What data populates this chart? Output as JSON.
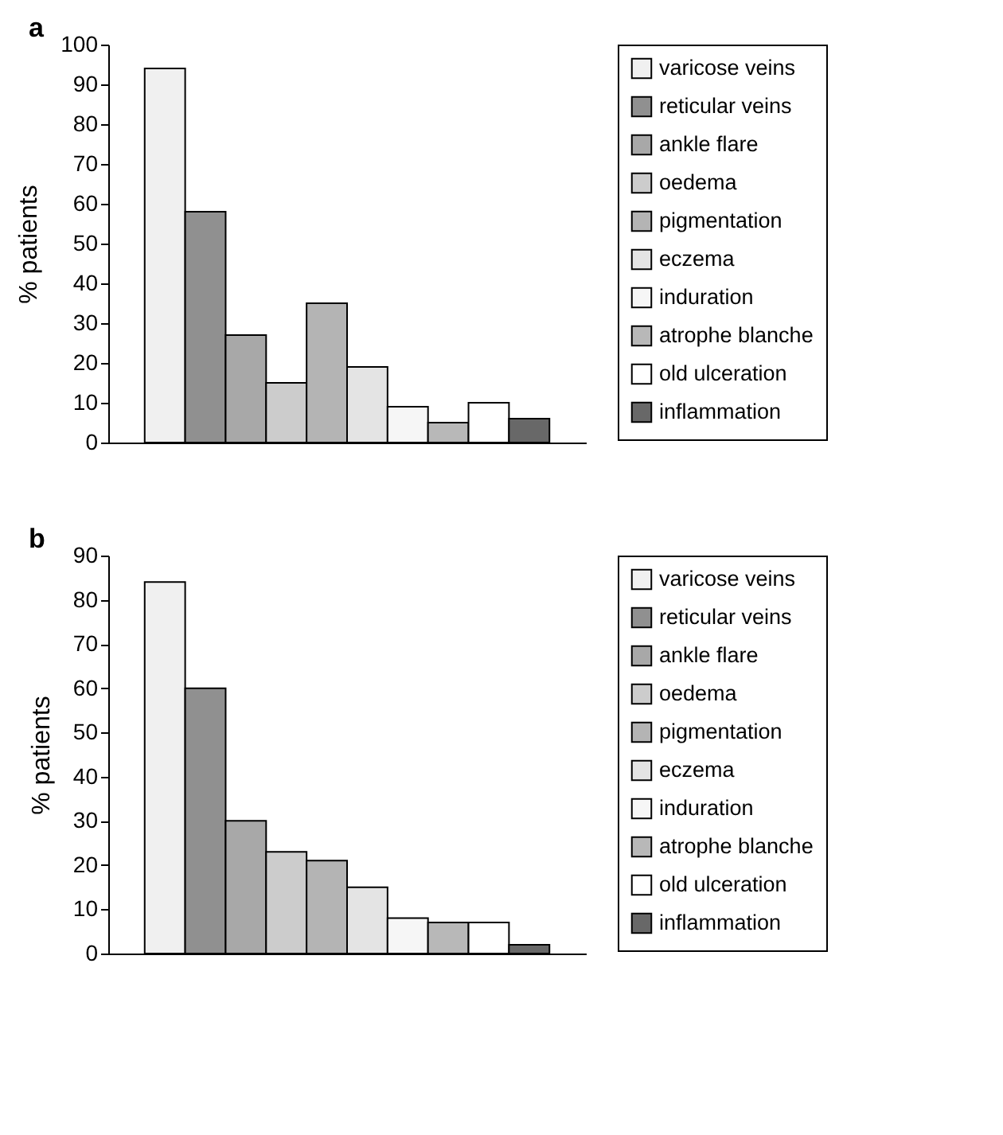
{
  "chart_data": [
    {
      "type": "bar",
      "title": "a",
      "ylabel": "% patients",
      "categories": [
        null
      ],
      "ylim": [
        0,
        100
      ],
      "yticks": [
        0,
        10,
        20,
        30,
        40,
        50,
        60,
        70,
        80,
        90,
        100
      ],
      "grid": false,
      "legend": "right",
      "tick_labels": "y",
      "series": [
        {
          "name": "varicose veins",
          "color": "#f0f0f0",
          "values": [
            94
          ]
        },
        {
          "name": "reticular veins",
          "color": "#909090",
          "values": [
            58
          ]
        },
        {
          "name": "ankle flare",
          "color": "#a8a8a8",
          "values": [
            27
          ]
        },
        {
          "name": "oedema",
          "color": "#cccccc",
          "values": [
            15
          ]
        },
        {
          "name": "pigmentation",
          "color": "#b4b4b4",
          "values": [
            35
          ]
        },
        {
          "name": "eczema",
          "color": "#e4e4e4",
          "values": [
            19
          ]
        },
        {
          "name": "induration",
          "color": "#f6f6f6",
          "values": [
            9
          ]
        },
        {
          "name": "atrophe blanche",
          "color": "#b8b8b8",
          "values": [
            5
          ]
        },
        {
          "name": "old ulceration",
          "color": "#ffffff",
          "values": [
            10
          ]
        },
        {
          "name": "inflammation",
          "color": "#686868",
          "values": [
            6
          ]
        }
      ]
    },
    {
      "type": "bar",
      "title": "b",
      "ylabel": "% patients",
      "categories": [
        null
      ],
      "ylim": [
        0,
        90
      ],
      "yticks": [
        0,
        10,
        20,
        30,
        40,
        50,
        60,
        70,
        80,
        90
      ],
      "grid": false,
      "legend": "right",
      "tick_labels": "y",
      "series": [
        {
          "name": "varicose veins",
          "color": "#f0f0f0",
          "values": [
            84
          ]
        },
        {
          "name": "reticular veins",
          "color": "#909090",
          "values": [
            60
          ]
        },
        {
          "name": "ankle flare",
          "color": "#a8a8a8",
          "values": [
            30
          ]
        },
        {
          "name": "oedema",
          "color": "#cccccc",
          "values": [
            23
          ]
        },
        {
          "name": "pigmentation",
          "color": "#b4b4b4",
          "values": [
            21
          ]
        },
        {
          "name": "eczema",
          "color": "#e4e4e4",
          "values": [
            15
          ]
        },
        {
          "name": "induration",
          "color": "#f6f6f6",
          "values": [
            8
          ]
        },
        {
          "name": "atrophe blanche",
          "color": "#b8b8b8",
          "values": [
            7
          ]
        },
        {
          "name": "old ulceration",
          "color": "#ffffff",
          "values": [
            7
          ]
        },
        {
          "name": "inflammation",
          "color": "#686868",
          "values": [
            2
          ]
        }
      ]
    }
  ]
}
